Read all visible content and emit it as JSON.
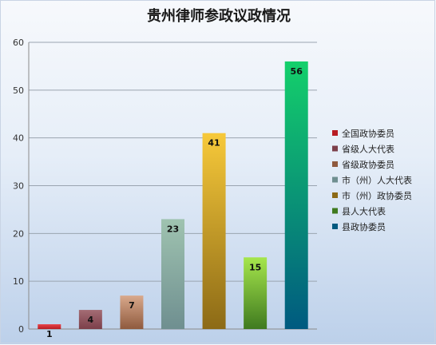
{
  "chart_data": {
    "type": "bar",
    "title": "贵州律师参政议政情况",
    "xlabel": "",
    "ylabel": "",
    "ylim": [
      0,
      60
    ],
    "yticks": [
      0,
      10,
      20,
      30,
      40,
      50,
      60
    ],
    "grid": true,
    "legend_position": "right",
    "categories": [
      "全国政协委员",
      "省级人大代表",
      "省级政协委员",
      "市（州）人大代表",
      "市（州）政协委员",
      "县人大代表",
      "县政协委员"
    ],
    "values": [
      1,
      4,
      7,
      23,
      41,
      15,
      56
    ],
    "colors": [
      [
        "#e8454a",
        "#b81c22"
      ],
      [
        "#a46c74",
        "#7c3f4a"
      ],
      [
        "#d9a98c",
        "#8f5a3e"
      ],
      [
        "#9fc3b0",
        "#6f8f90"
      ],
      [
        "#f7c93a",
        "#8c6a16"
      ],
      [
        "#a6e64c",
        "#3f7a1f"
      ],
      [
        "#14d06b",
        "#005a80"
      ]
    ]
  }
}
